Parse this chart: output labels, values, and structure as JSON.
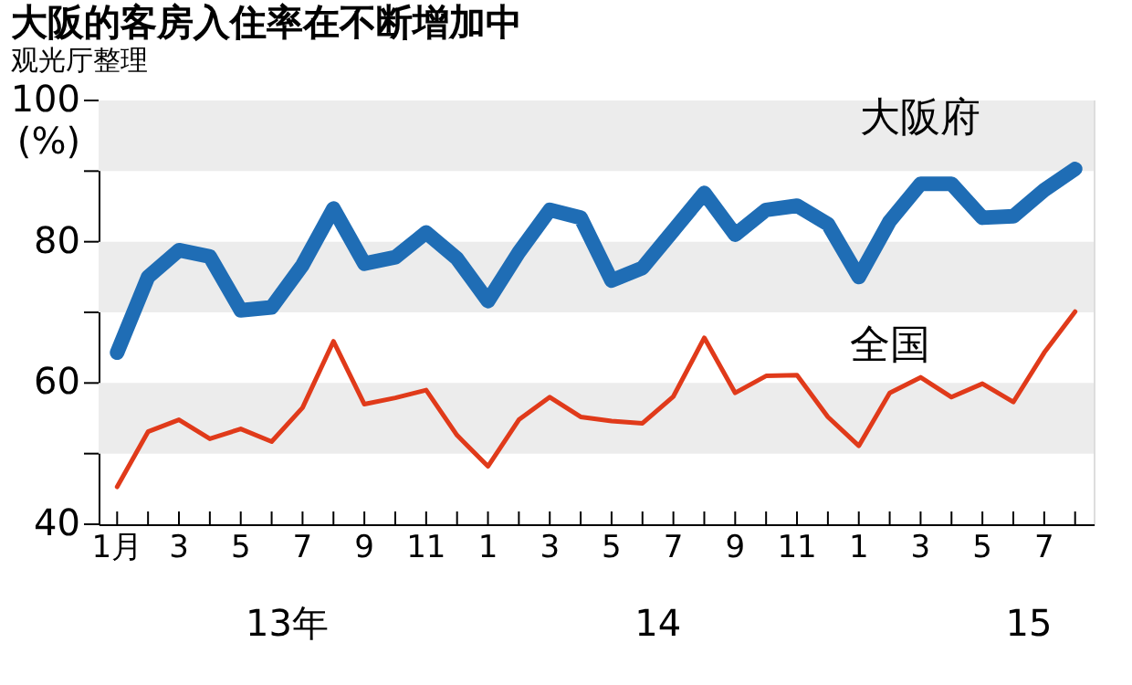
{
  "chart_data": {
    "type": "line",
    "title": "大阪的客房入住率在不断增加中",
    "subtitle": "观光厅整理",
    "categories": [
      "1月",
      null,
      "3",
      null,
      "5",
      null,
      "7",
      null,
      "9",
      null,
      "11",
      null,
      "1",
      null,
      "3",
      null,
      "5",
      null,
      "7",
      null,
      "9",
      null,
      "11",
      null,
      "1",
      null,
      "3",
      null,
      "5",
      null,
      "7",
      null
    ],
    "series": [
      {
        "name": "大阪府",
        "color": "#1f6db5",
        "values": [
          64.3,
          75.0,
          78.8,
          77.9,
          70.3,
          70.7,
          76.7,
          84.7,
          76.9,
          77.8,
          81.3,
          77.6,
          71.6,
          78.5,
          84.5,
          83.4,
          74.5,
          76.3,
          81.6,
          86.9,
          81.0,
          84.5,
          85.1,
          82.5,
          75.0,
          82.9,
          88.2,
          88.2,
          83.4,
          83.6,
          87.3,
          90.3
        ]
      },
      {
        "name": "全国",
        "color": "#e03a1a",
        "values": [
          45.3,
          53.1,
          54.8,
          52.1,
          53.5,
          51.7,
          56.5,
          65.9,
          57.0,
          57.9,
          59.0,
          52.6,
          48.2,
          54.8,
          58.0,
          55.2,
          54.6,
          54.3,
          58.1,
          66.4,
          58.6,
          61.0,
          61.1,
          55.2,
          51.1,
          58.6,
          60.8,
          58.0,
          59.9,
          57.3,
          64.3,
          70.1
        ]
      }
    ],
    "ylabel": "(%)",
    "ylim": [
      40,
      100
    ],
    "yticks": [
      40,
      {
        "value": 50,
        "label": null
      },
      60,
      {
        "value": 70,
        "label": null
      },
      80,
      {
        "value": 90,
        "label": null
      },
      100
    ],
    "bands": [
      {
        "axis": "y",
        "from": 50,
        "to": 60,
        "color": "#ececec"
      },
      {
        "axis": "y",
        "from": 70,
        "to": 80,
        "color": "#ececec"
      },
      {
        "axis": "y",
        "from": 90,
        "to": 100,
        "color": "#ececec"
      }
    ],
    "annotations": [
      "13年",
      "14",
      "15"
    ],
    "grid": false,
    "marker": "none",
    "line_style": "solid"
  }
}
